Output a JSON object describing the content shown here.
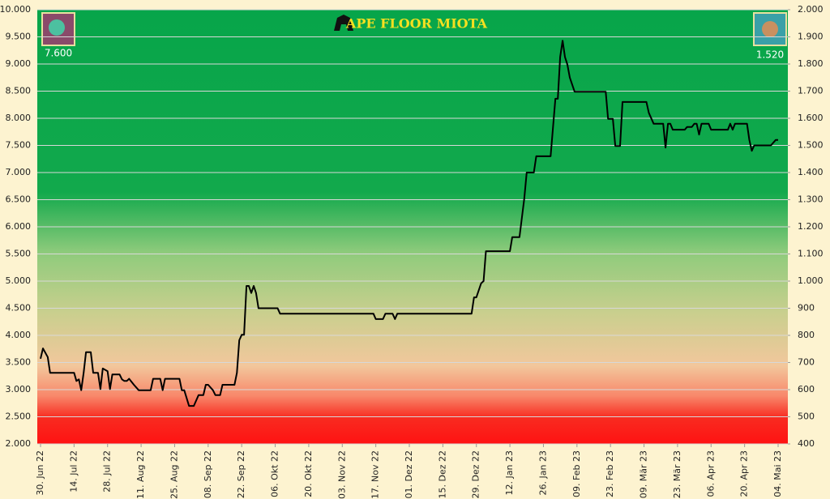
{
  "chart_data": {
    "type": "line",
    "title": "APE FLOOR MIOTA",
    "color": "#000000",
    "x": [
      "2022-06-30",
      "2022-07-01",
      "2022-07-03",
      "2022-07-04",
      "2022-07-14",
      "2022-07-15",
      "2022-07-16",
      "2022-07-17",
      "2022-07-18",
      "2022-07-19",
      "2022-07-21",
      "2022-07-22",
      "2022-07-24",
      "2022-07-25",
      "2022-07-26",
      "2022-07-28",
      "2022-07-29",
      "2022-07-30",
      "2022-08-02",
      "2022-08-03",
      "2022-08-04",
      "2022-08-05",
      "2022-08-06",
      "2022-08-08",
      "2022-08-10",
      "2022-08-15",
      "2022-08-16",
      "2022-08-19",
      "2022-08-20",
      "2022-08-21",
      "2022-08-27",
      "2022-08-28",
      "2022-08-29",
      "2022-08-31",
      "2022-09-02",
      "2022-09-04",
      "2022-09-06",
      "2022-09-07",
      "2022-09-08",
      "2022-09-10",
      "2022-09-11",
      "2022-09-13",
      "2022-09-14",
      "2022-09-19",
      "2022-09-20",
      "2022-09-21",
      "2022-09-22",
      "2022-09-23",
      "2022-09-24",
      "2022-09-25",
      "2022-09-26",
      "2022-09-27",
      "2022-09-28",
      "2022-09-29",
      "2022-10-07",
      "2022-10-08",
      "2022-11-16",
      "2022-11-17",
      "2022-11-20",
      "2022-11-21",
      "2022-11-24",
      "2022-11-25",
      "2022-11-26",
      "2022-12-27",
      "2022-12-28",
      "2022-12-29",
      "2022-12-31",
      "2023-01-01",
      "2023-01-02",
      "2023-01-12",
      "2023-01-13",
      "2023-01-16",
      "2023-01-18",
      "2023-01-19",
      "2023-01-22",
      "2023-01-23",
      "2023-01-29",
      "2023-01-31",
      "2023-02-01",
      "2023-02-02",
      "2023-02-03",
      "2023-02-04",
      "2023-02-05",
      "2023-02-06",
      "2023-02-08",
      "2023-02-21",
      "2023-02-22",
      "2023-02-24",
      "2023-02-25",
      "2023-02-27",
      "2023-02-28",
      "2023-03-10",
      "2023-03-11",
      "2023-03-13",
      "2023-03-17",
      "2023-03-18",
      "2023-03-19",
      "2023-03-20",
      "2023-03-21",
      "2023-03-26",
      "2023-03-27",
      "2023-03-29",
      "2023-03-30",
      "2023-03-31",
      "2023-04-01",
      "2023-04-02",
      "2023-04-05",
      "2023-04-06",
      "2023-04-13",
      "2023-04-14",
      "2023-04-15",
      "2023-04-16",
      "2023-04-21",
      "2023-04-22",
      "2023-04-23",
      "2023-04-24",
      "2023-05-01",
      "2023-05-03",
      "2023-05-04"
    ],
    "values": [
      3.57,
      3.76,
      3.6,
      3.31,
      3.31,
      3.16,
      3.19,
      2.99,
      3.31,
      3.69,
      3.69,
      3.31,
      3.31,
      3.01,
      3.39,
      3.34,
      3.01,
      3.28,
      3.28,
      3.19,
      3.16,
      3.16,
      3.2,
      3.09,
      2.99,
      2.99,
      3.2,
      3.2,
      2.99,
      3.2,
      3.2,
      2.99,
      2.99,
      2.7,
      2.7,
      2.9,
      2.9,
      3.09,
      3.09,
      2.99,
      2.9,
      2.9,
      3.09,
      3.09,
      3.31,
      3.91,
      4.01,
      4.01,
      4.91,
      4.91,
      4.78,
      4.91,
      4.78,
      4.5,
      4.5,
      4.4,
      4.4,
      4.3,
      4.3,
      4.4,
      4.4,
      4.3,
      4.4,
      4.4,
      4.7,
      4.7,
      4.96,
      5.0,
      5.55,
      5.55,
      5.81,
      5.81,
      6.52,
      7.0,
      7.0,
      7.3,
      7.3,
      8.36,
      8.36,
      9.13,
      9.43,
      9.13,
      8.99,
      8.75,
      8.49,
      8.49,
      7.99,
      7.99,
      7.49,
      7.49,
      8.3,
      8.3,
      8.1,
      7.9,
      7.9,
      7.46,
      7.9,
      7.9,
      7.79,
      7.79,
      7.84,
      7.84,
      7.9,
      7.9,
      7.7,
      7.9,
      7.9,
      7.79,
      7.79,
      7.9,
      7.79,
      7.9,
      7.9,
      7.6,
      7.4,
      7.5,
      7.5,
      7.6,
      7.6
    ],
    "xlim": [
      "2022-06-30",
      "2023-05-04"
    ],
    "xticks": [
      {
        "value": "2022-06-30",
        "label": "30. Jun 22"
      },
      {
        "value": "2022-07-14",
        "label": "14. Jul 22"
      },
      {
        "value": "2022-07-28",
        "label": "28. Jul 22"
      },
      {
        "value": "2022-08-11",
        "label": "11. Aug 22"
      },
      {
        "value": "2022-08-25",
        "label": "25. Aug 22"
      },
      {
        "value": "2022-09-08",
        "label": "08. Sep 22"
      },
      {
        "value": "2022-09-22",
        "label": "22. Sep 22"
      },
      {
        "value": "2022-10-06",
        "label": "06. Okt 22"
      },
      {
        "value": "2022-10-20",
        "label": "20. Okt 22"
      },
      {
        "value": "2022-11-03",
        "label": "03. Nov 22"
      },
      {
        "value": "2022-11-17",
        "label": "17. Nov 22"
      },
      {
        "value": "2022-12-01",
        "label": "01. Dez 22"
      },
      {
        "value": "2022-12-15",
        "label": "15. Dez 22"
      },
      {
        "value": "2022-12-29",
        "label": "29. Dez 22"
      },
      {
        "value": "2023-01-12",
        "label": "12. Jan 23"
      },
      {
        "value": "2023-01-26",
        "label": "26. Jan 23"
      },
      {
        "value": "2023-02-09",
        "label": "09. Feb 23"
      },
      {
        "value": "2023-02-23",
        "label": "23. Feb 23"
      },
      {
        "value": "2023-03-09",
        "label": "09. Mär 23"
      },
      {
        "value": "2023-03-23",
        "label": "23. Mär 23"
      },
      {
        "value": "2023-04-06",
        "label": "06. Apr 23"
      },
      {
        "value": "2023-04-20",
        "label": "20. Apr 23"
      },
      {
        "value": "2023-05-04",
        "label": "04. Mai 23"
      }
    ],
    "ylim": [
      2,
      10
    ],
    "yticks": [
      {
        "value": 2,
        "label": "2.000"
      },
      {
        "value": 2.5,
        "label": "2.500"
      },
      {
        "value": 3,
        "label": "3.000"
      },
      {
        "value": 3.5,
        "label": "3.500"
      },
      {
        "value": 4,
        "label": "4.000"
      },
      {
        "value": 4.5,
        "label": "4.500"
      },
      {
        "value": 5,
        "label": "5.000"
      },
      {
        "value": 5.5,
        "label": "5.500"
      },
      {
        "value": 6,
        "label": "6.000"
      },
      {
        "value": 6.5,
        "label": "6.500"
      },
      {
        "value": 7,
        "label": "7.000"
      },
      {
        "value": 7.5,
        "label": "7.500"
      },
      {
        "value": 8,
        "label": "8.000"
      },
      {
        "value": 8.5,
        "label": "8.500"
      },
      {
        "value": 9,
        "label": "9.000"
      },
      {
        "value": 9.5,
        "label": "9.500"
      },
      {
        "value": 10,
        "label": "10.000"
      }
    ],
    "y2lim": [
      400,
      2000
    ],
    "y2ticks": [
      400,
      500,
      600,
      700,
      800,
      900,
      {
        "value": 1000,
        "label": "1.000"
      },
      {
        "value": 1100,
        "label": "1.100"
      },
      {
        "value": 1200,
        "label": "1.200"
      },
      {
        "value": 1300,
        "label": "1.300"
      },
      {
        "value": 1400,
        "label": "1.400"
      },
      {
        "value": 1500,
        "label": "1.500"
      },
      {
        "value": 1600,
        "label": "1.600"
      },
      {
        "value": 1700,
        "label": "1.700"
      },
      {
        "value": 1800,
        "label": "1.800"
      },
      {
        "value": 1900,
        "label": "1.900"
      },
      {
        "value": 2000,
        "label": "2.000"
      }
    ],
    "grid": true,
    "left_value": {
      "value": 7.6,
      "label": "7.600"
    },
    "right_value": {
      "value": 1520,
      "label": "1.520"
    }
  }
}
